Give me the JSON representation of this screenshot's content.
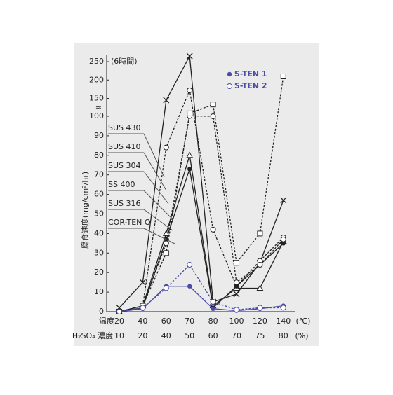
{
  "chart_data": {
    "type": "line",
    "annotation": "(6時間)",
    "axis_break_label": "≈",
    "y_label": "腐食速度(mg/cm²/hr)",
    "x_row_labels": [
      "温度",
      "H₂SO₄ 濃度"
    ],
    "x_row_units": [
      "(℃)",
      "(%)"
    ],
    "categories": [
      "20",
      "40",
      "60",
      "70",
      "80",
      "100",
      "120",
      "140"
    ],
    "categories2": [
      "10",
      "20",
      "40",
      "50",
      "60",
      "70",
      "75",
      "80"
    ],
    "ylim": [
      0,
      250
    ],
    "y_break": [
      100,
      150
    ],
    "yticks": [
      0,
      10,
      20,
      30,
      40,
      50,
      60,
      70,
      80,
      90,
      100,
      150,
      200,
      250
    ],
    "series": [
      {
        "name": "SUS 430",
        "color": "#222222",
        "marker": "x",
        "dash": false,
        "values": [
          2,
          15,
          145,
          265,
          5,
          9,
          25,
          57
        ]
      },
      {
        "name": "SUS 410",
        "color": "#222222",
        "marker": "circle",
        "dash": true,
        "values": [
          0,
          3,
          84,
          172,
          42,
          13,
          26,
          38
        ]
      },
      {
        "name": "SUS 304",
        "color": "#222222",
        "marker": "triangle",
        "dash": false,
        "values": [
          0,
          3,
          40,
          80,
          3,
          12,
          12,
          36
        ]
      },
      {
        "name": "SS 400",
        "color": "#222222",
        "marker": "dot",
        "dash": false,
        "values": [
          0,
          2,
          37,
          73,
          2,
          13,
          24,
          35
        ]
      },
      {
        "name": "SUS 316",
        "color": "#222222",
        "marker": "circle",
        "dash": true,
        "values": [
          0,
          3,
          35,
          101,
          100,
          15,
          24,
          37
        ]
      },
      {
        "name": "COR-TEN O",
        "color": "#222222",
        "marker": "square",
        "dash": true,
        "values": [
          0,
          3,
          30,
          108,
          133,
          25,
          40,
          210
        ]
      },
      {
        "name": "S-TEN 1",
        "color": "#4a4aa8",
        "marker": "dot",
        "dash": false,
        "values": [
          0,
          1.5,
          13,
          13,
          1.5,
          0.5,
          1.5,
          3
        ]
      },
      {
        "name": "S-TEN 2",
        "color": "#4a4aa8",
        "marker": "circle",
        "dash": true,
        "values": [
          0,
          2,
          12,
          24,
          5,
          1,
          2,
          2
        ]
      }
    ]
  }
}
